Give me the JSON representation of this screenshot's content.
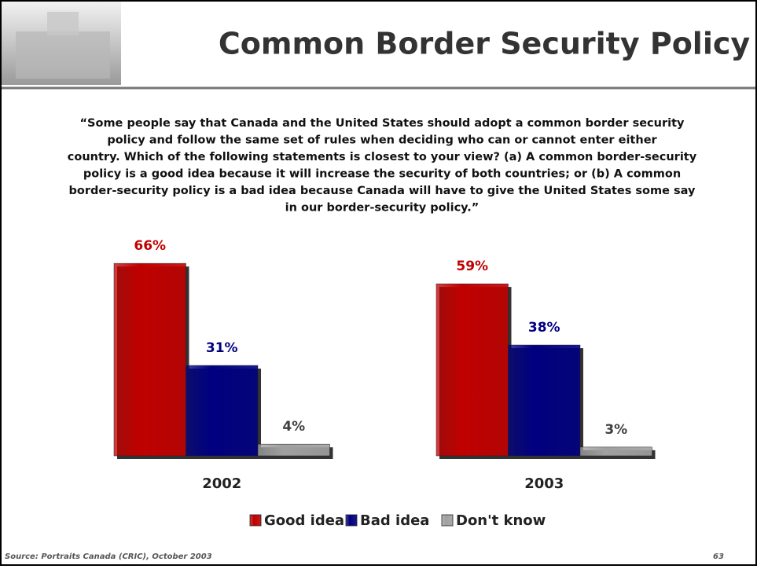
{
  "slide": {
    "title": "Common Border Security Policy",
    "question": [
      "“Some people say that Canada and the United States should adopt a common border security",
      "policy and follow the same set of rules when deciding who can or cannot enter either",
      "country.  Which of the following statements is closest to your view? (a) A common border-security",
      "policy is a good idea because it will increase the security of both countries; or (b) A common",
      "border-security policy is a bad idea because Canada will have to give the United States some say",
      "in our border-security policy.”"
    ],
    "source": "Source: Portraits Canada (CRIC), October 2003",
    "page_number": 63
  },
  "chart_data": {
    "type": "bar",
    "categories": [
      "2002",
      "2003"
    ],
    "series": [
      {
        "name": "Good idea",
        "color": "#c00000",
        "values": [
          66,
          59
        ],
        "value_labels": [
          "66%",
          "59%"
        ],
        "label_color": "#c00000"
      },
      {
        "name": "Bad idea",
        "color": "#000080",
        "values": [
          31,
          38
        ],
        "value_labels": [
          "31%",
          "38%"
        ],
        "label_color": "#000080"
      },
      {
        "name": "Don't know",
        "color": "#a0a0a0",
        "values": [
          4,
          3
        ],
        "value_labels": [
          "4%",
          "3%"
        ],
        "label_color": "#404040"
      }
    ],
    "legend": "bottom"
  }
}
